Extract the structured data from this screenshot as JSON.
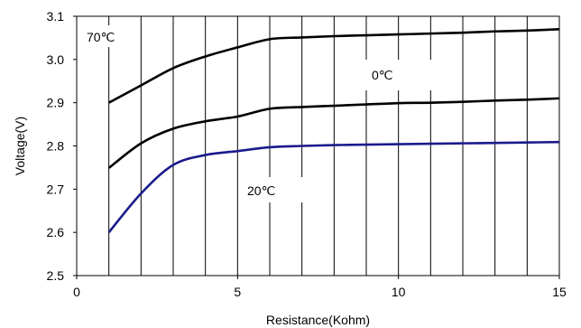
{
  "chart_data": {
    "type": "line",
    "title": "",
    "xlabel": "Resistance(Kohm)",
    "ylabel": "Voltage(V)",
    "xlim": [
      0,
      15
    ],
    "ylim": [
      2.5,
      3.1
    ],
    "x_ticks": [
      "0",
      "5",
      "10",
      "15"
    ],
    "y_ticks": [
      "2.5",
      "2.6",
      "2.7",
      "2.8",
      "2.9",
      "3.0",
      "3.1"
    ],
    "grid": "vertical lines at each 1 Kohm",
    "series": [
      {
        "name": "70℃",
        "color": "#000000",
        "x": [
          1,
          2,
          3,
          4,
          5,
          6,
          7,
          8,
          9,
          10,
          11,
          12,
          13,
          14,
          15
        ],
        "values": [
          2.9,
          2.94,
          2.98,
          3.007,
          3.028,
          3.047,
          3.051,
          3.054,
          3.056,
          3.058,
          3.06,
          3.062,
          3.065,
          3.067,
          3.07
        ]
      },
      {
        "name": "0℃",
        "color": "#000000",
        "x": [
          1,
          2,
          3,
          4,
          5,
          6,
          7,
          8,
          9,
          10,
          11,
          12,
          13,
          14,
          15
        ],
        "values": [
          2.749,
          2.806,
          2.84,
          2.857,
          2.868,
          2.886,
          2.89,
          2.893,
          2.896,
          2.899,
          2.9,
          2.902,
          2.905,
          2.907,
          2.91
        ]
      },
      {
        "name": "20℃",
        "color": "#1a1a8c",
        "x": [
          1,
          2,
          3,
          4,
          5,
          6,
          7,
          8,
          9,
          10,
          11,
          12,
          13,
          14,
          15
        ],
        "values": [
          2.6,
          2.69,
          2.756,
          2.779,
          2.788,
          2.797,
          2.8,
          2.802,
          2.803,
          2.804,
          2.805,
          2.806,
          2.807,
          2.808,
          2.809
        ]
      }
    ],
    "annotations": [
      "70℃",
      "0℃",
      "20℃"
    ]
  }
}
